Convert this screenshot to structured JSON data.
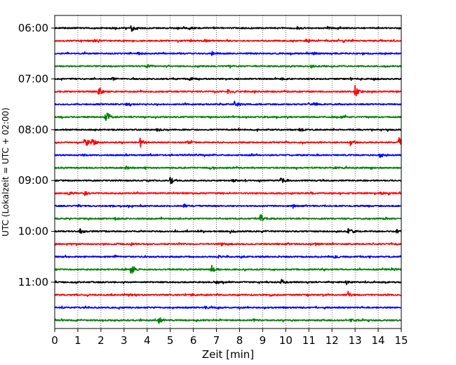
{
  "chart_data": {
    "type": "line",
    "title": "",
    "xlabel": "Zeit  [min]",
    "ylabel": "UTC (Lokalzeit = UTC + 02:00)",
    "xlim": [
      0,
      15
    ],
    "x_ticks": [
      0,
      1,
      2,
      3,
      4,
      5,
      6,
      7,
      8,
      9,
      10,
      11,
      12,
      13,
      14,
      15
    ],
    "y_tick_labels": [
      "06:00",
      "07:00",
      "08:00",
      "09:00",
      "10:00",
      "11:00"
    ],
    "row_interval_min": 15,
    "grid": "vertical dotted at each minute",
    "colors": [
      "#000000",
      "#ff0000",
      "#0000ff",
      "#008000"
    ],
    "traces": [
      {
        "row": 0,
        "label": "06:00",
        "color": "#000000",
        "events": [
          [
            3.3,
            0.7
          ],
          [
            5.8,
            0.2
          ],
          [
            10.5,
            0.35
          ],
          [
            11.8,
            0.2
          ]
        ]
      },
      {
        "row": 1,
        "label": "06:15",
        "color": "#ff0000",
        "events": [
          [
            1.7,
            0.25
          ],
          [
            6.5,
            0.2
          ],
          [
            10.9,
            0.35
          ],
          [
            12.5,
            0.2
          ]
        ]
      },
      {
        "row": 2,
        "label": "06:30",
        "color": "#0000ff",
        "events": [
          [
            3.6,
            0.2
          ],
          [
            6.8,
            0.25
          ],
          [
            11.2,
            0.2
          ]
        ]
      },
      {
        "row": 3,
        "label": "06:45",
        "color": "#008000",
        "events": [
          [
            4.0,
            0.35
          ],
          [
            7.5,
            0.2
          ],
          [
            11.1,
            0.25
          ],
          [
            14.2,
            0.2
          ]
        ]
      },
      {
        "row": 4,
        "label": "07:00",
        "color": "#000000",
        "events": [
          [
            2.5,
            0.2
          ],
          [
            5.8,
            0.2
          ],
          [
            9.8,
            0.25
          ],
          [
            13.8,
            0.2
          ]
        ]
      },
      {
        "row": 5,
        "label": "07:15",
        "color": "#ff0000",
        "events": [
          [
            1.9,
            0.6
          ],
          [
            7.5,
            0.35
          ],
          [
            13.0,
            1.0
          ]
        ]
      },
      {
        "row": 6,
        "label": "07:30",
        "color": "#0000ff",
        "events": [
          [
            3.1,
            0.2
          ],
          [
            7.8,
            0.65
          ],
          [
            11.2,
            0.2
          ]
        ]
      },
      {
        "row": 7,
        "label": "07:45",
        "color": "#008000",
        "events": [
          [
            2.2,
            1.0
          ],
          [
            9.1,
            0.2
          ],
          [
            12.4,
            0.2
          ]
        ]
      },
      {
        "row": 8,
        "label": "08:00",
        "color": "#000000",
        "events": [
          [
            4.4,
            0.3
          ],
          [
            10.6,
            0.35
          ]
        ]
      },
      {
        "row": 9,
        "label": "08:15",
        "color": "#ff0000",
        "events": [
          [
            1.3,
            1.0
          ],
          [
            1.6,
            0.7
          ],
          [
            3.7,
            1.0
          ],
          [
            5.7,
            0.3
          ],
          [
            12.8,
            0.5
          ],
          [
            14.9,
            0.9
          ]
        ]
      },
      {
        "row": 10,
        "label": "08:30",
        "color": "#0000ff",
        "events": [
          [
            1.2,
            0.2
          ],
          [
            6.1,
            0.25
          ],
          [
            14.1,
            0.3
          ]
        ]
      },
      {
        "row": 11,
        "label": "08:45",
        "color": "#008000",
        "events": [
          [
            3.1,
            0.25
          ],
          [
            6.7,
            0.2
          ],
          [
            12.1,
            0.2
          ]
        ]
      },
      {
        "row": 12,
        "label": "09:00",
        "color": "#000000",
        "events": [
          [
            5.0,
            1.0
          ],
          [
            9.8,
            1.0
          ],
          [
            7.7,
            0.2
          ]
        ]
      },
      {
        "row": 13,
        "label": "09:15",
        "color": "#ff0000",
        "events": [
          [
            0.6,
            0.3
          ],
          [
            1.3,
            0.35
          ],
          [
            11.1,
            0.2
          ],
          [
            14.1,
            0.25
          ]
        ]
      },
      {
        "row": 14,
        "label": "09:30",
        "color": "#0000ff",
        "events": [
          [
            1.0,
            0.2
          ],
          [
            5.6,
            0.25
          ],
          [
            10.3,
            0.2
          ]
        ]
      },
      {
        "row": 15,
        "label": "09:45",
        "color": "#008000",
        "events": [
          [
            2.6,
            0.2
          ],
          [
            8.9,
            1.0
          ],
          [
            14.3,
            0.2
          ]
        ]
      },
      {
        "row": 16,
        "label": "10:00",
        "color": "#000000",
        "events": [
          [
            1.1,
            0.35
          ],
          [
            7.6,
            0.25
          ],
          [
            12.7,
            1.0
          ],
          [
            14.8,
            0.25
          ]
        ]
      },
      {
        "row": 17,
        "label": "10:15",
        "color": "#ff0000",
        "events": [
          [
            3.3,
            0.2
          ],
          [
            7.2,
            0.25
          ],
          [
            11.3,
            0.2
          ]
        ]
      },
      {
        "row": 18,
        "label": "10:30",
        "color": "#0000ff",
        "events": [
          [
            2.6,
            0.2
          ],
          [
            7.1,
            0.2
          ],
          [
            12.1,
            0.2
          ]
        ]
      },
      {
        "row": 19,
        "label": "10:45",
        "color": "#008000",
        "events": [
          [
            3.3,
            1.0
          ],
          [
            6.8,
            0.7
          ],
          [
            14.6,
            0.3
          ]
        ]
      },
      {
        "row": 20,
        "label": "11:00",
        "color": "#000000",
        "events": [
          [
            7.0,
            0.3
          ],
          [
            9.8,
            0.6
          ],
          [
            12.6,
            0.2
          ]
        ]
      },
      {
        "row": 21,
        "label": "11:15",
        "color": "#ff0000",
        "events": [
          [
            3.2,
            0.2
          ],
          [
            5.9,
            0.2
          ],
          [
            12.7,
            0.45
          ]
        ]
      },
      {
        "row": 22,
        "label": "11:30",
        "color": "#0000ff",
        "events": [
          [
            1.3,
            0.2
          ],
          [
            6.5,
            0.25
          ],
          [
            9.9,
            0.2
          ]
        ]
      },
      {
        "row": 23,
        "label": "11:45",
        "color": "#008000",
        "events": [
          [
            4.5,
            0.7
          ],
          [
            8.6,
            0.2
          ],
          [
            12.8,
            0.2
          ]
        ]
      }
    ]
  }
}
